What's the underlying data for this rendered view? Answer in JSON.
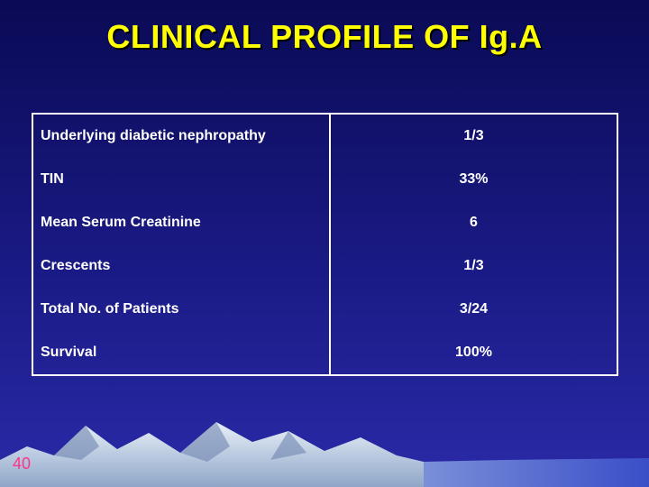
{
  "slide": {
    "title": "CLINICAL PROFILE OF Ig.A",
    "page_number": "40"
  },
  "rows": [
    {
      "label": "Underlying diabetic nephropathy",
      "value": "1/3"
    },
    {
      "label": "TIN",
      "value": "33%"
    },
    {
      "label": "Mean Serum Creatinine",
      "value": "6"
    },
    {
      "label": "Crescents",
      "value": "1/3"
    },
    {
      "label": "Total No. of Patients",
      "value": "3/24"
    },
    {
      "label": "Survival",
      "value": "100%"
    }
  ],
  "colors": {
    "title": "#ffff00",
    "page_number": "#ff3388",
    "background": "#1a1a85"
  }
}
